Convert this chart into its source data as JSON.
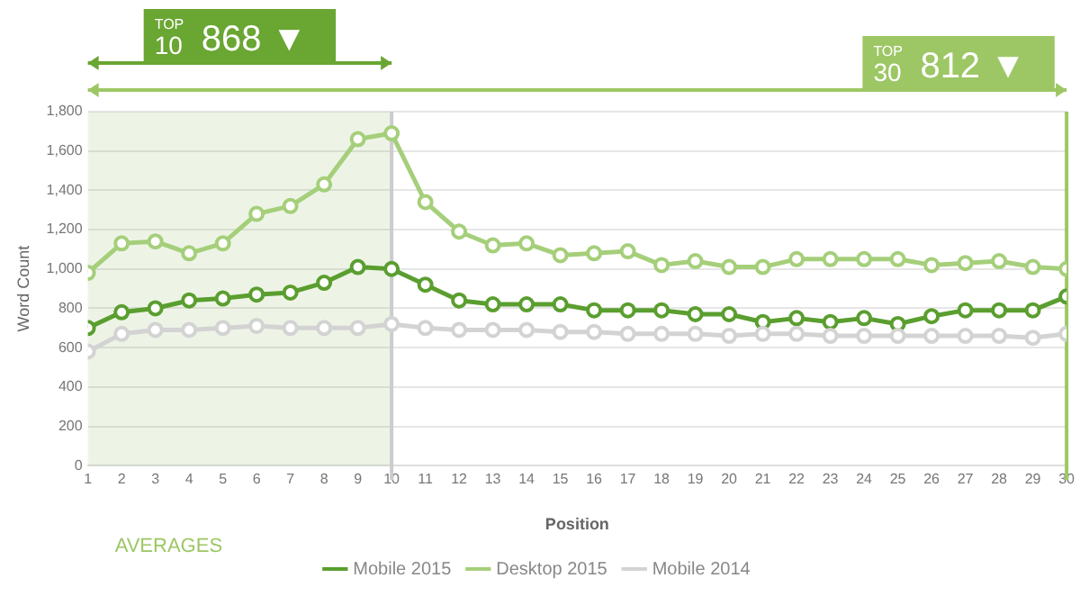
{
  "chart_data": {
    "type": "line",
    "ylabel": "Word Count",
    "xlabel": "Position",
    "x": [
      1,
      2,
      3,
      4,
      5,
      6,
      7,
      8,
      9,
      10,
      11,
      12,
      13,
      14,
      15,
      16,
      17,
      18,
      19,
      20,
      21,
      22,
      23,
      24,
      25,
      26,
      27,
      28,
      29,
      30
    ],
    "xlim": [
      1,
      30
    ],
    "xticks": [
      1,
      2,
      3,
      4,
      5,
      6,
      7,
      8,
      9,
      10,
      11,
      12,
      13,
      14,
      15,
      16,
      17,
      18,
      19,
      20,
      21,
      22,
      23,
      24,
      25,
      26,
      27,
      28,
      29,
      30
    ],
    "ylim": [
      0,
      1800
    ],
    "yticks": [
      0,
      200,
      400,
      600,
      800,
      {
        "value": 1000,
        "label": "1,000"
      },
      {
        "value": 1200,
        "label": "1,200"
      },
      {
        "value": 1400,
        "label": "1,400"
      },
      {
        "value": 1600,
        "label": "1,600"
      },
      {
        "value": 1800,
        "label": "1,800"
      }
    ],
    "series": [
      {
        "name": "Mobile 2015",
        "color": "#5a9e2f",
        "values": [
          700,
          780,
          800,
          840,
          850,
          870,
          880,
          930,
          1010,
          1000,
          920,
          840,
          820,
          820,
          820,
          790,
          790,
          790,
          770,
          770,
          730,
          750,
          730,
          750,
          720,
          760,
          790,
          790,
          790,
          860
        ]
      },
      {
        "name": "Desktop 2015",
        "color": "#a5cf7a",
        "values": [
          980,
          1130,
          1140,
          1080,
          1130,
          1280,
          1320,
          1430,
          1660,
          1690,
          1340,
          1190,
          1120,
          1130,
          1070,
          1080,
          1090,
          1020,
          1040,
          1010,
          1010,
          1050,
          1050,
          1050,
          1050,
          1020,
          1030,
          1040,
          1010,
          1000
        ]
      },
      {
        "name": "Mobile 2014",
        "color": "#d3d3d3",
        "values": [
          580,
          670,
          690,
          690,
          700,
          710,
          700,
          700,
          700,
          720,
          700,
          690,
          690,
          690,
          680,
          680,
          670,
          670,
          670,
          660,
          670,
          670,
          660,
          660,
          660,
          660,
          660,
          660,
          650,
          670
        ]
      }
    ],
    "bands": [
      {
        "axis": "x",
        "from": 1,
        "to": 10,
        "label": "TOP 10 868 ▼",
        "color": "#6aa632"
      }
    ],
    "ref_lines": [
      {
        "axis": "x",
        "value": 10,
        "color": "#cccccc"
      },
      {
        "axis": "x",
        "value": 30,
        "label": "TOP 30 812 ▼",
        "color": "#9dc765"
      }
    ],
    "annotations": [
      "AVERAGES"
    ],
    "marker": "circle",
    "line_style": "solid",
    "grid": "y",
    "legend": "bottom"
  }
}
